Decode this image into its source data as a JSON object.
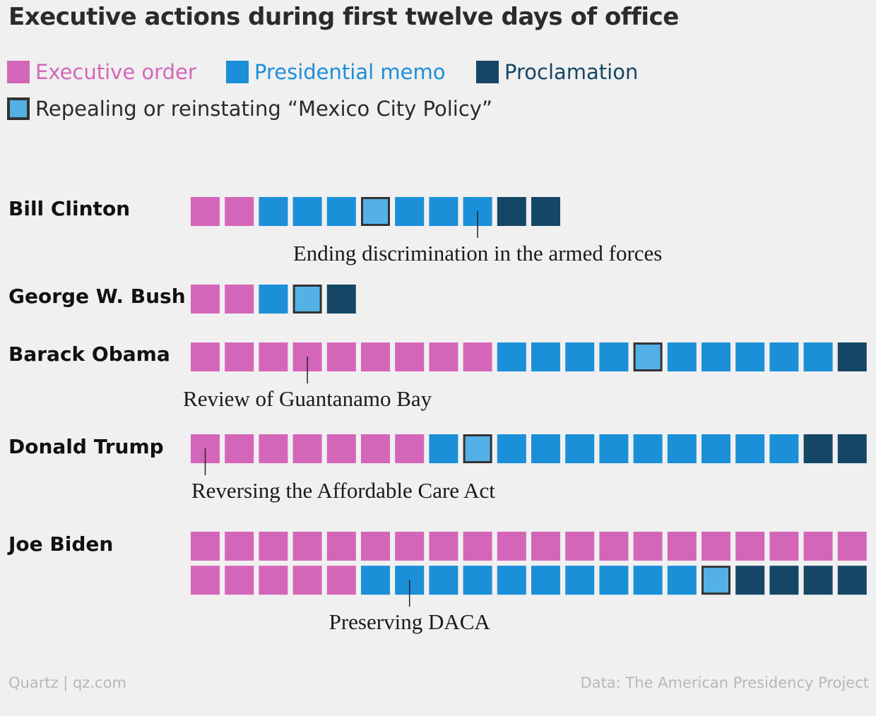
{
  "title": "Executive actions during first twelve days of office",
  "legend": [
    {
      "label": "Executive order",
      "color": "#d466b9",
      "text_color": "#d466b9",
      "outlined": false
    },
    {
      "label": "Presidential memo",
      "color": "#1b8fd8",
      "text_color": "#1b8fd8",
      "outlined": false
    },
    {
      "label": "Proclamation",
      "color": "#154666",
      "text_color": "#154666",
      "outlined": false
    },
    {
      "label": "Repealing or reinstating “Mexico City Policy”",
      "color": "#54b1e6",
      "text_color": "#2b2b2b",
      "outlined": true
    }
  ],
  "footer": {
    "source_left": "Quartz | qz.com",
    "source_right": "Data: The American Presidency Project"
  },
  "chart_data": {
    "type": "waffle",
    "title": "Executive actions during first twelve days of office",
    "unit": "one square = one executive action",
    "categories": {
      "E": "Executive order",
      "M": "Presidential memo",
      "P": "Proclamation",
      "X": "Repealing or reinstating “Mexico City Policy”"
    },
    "colors": {
      "E": "#d466b9",
      "M": "#1b8fd8",
      "P": "#154666",
      "X": "#54b1e6"
    },
    "outline_color": "#333333",
    "rows": [
      {
        "president": "Bill Clinton",
        "sequence": [
          "E",
          "E",
          "M",
          "M",
          "M",
          "X",
          "M",
          "M",
          "M",
          "P",
          "P"
        ],
        "counts": {
          "E": 2,
          "M": 6,
          "P": 2,
          "X": 1
        },
        "annotation": {
          "text": "Ending discrimination in the armed forces",
          "item_index": 8
        }
      },
      {
        "president": "George W. Bush",
        "sequence": [
          "E",
          "E",
          "M",
          "X",
          "P"
        ],
        "counts": {
          "E": 2,
          "M": 1,
          "P": 1,
          "X": 1
        },
        "annotation": null
      },
      {
        "president": "Barack Obama",
        "sequence": [
          "E",
          "E",
          "E",
          "E",
          "E",
          "E",
          "E",
          "E",
          "E",
          "M",
          "M",
          "M",
          "M",
          "X",
          "M",
          "M",
          "M",
          "M",
          "M",
          "P"
        ],
        "counts": {
          "E": 9,
          "M": 9,
          "P": 1,
          "X": 1
        },
        "annotation": {
          "text": "Review of Guantanamo Bay",
          "item_index": 3
        }
      },
      {
        "president": "Donald Trump",
        "sequence": [
          "E",
          "E",
          "E",
          "E",
          "E",
          "E",
          "E",
          "M",
          "X",
          "M",
          "M",
          "M",
          "M",
          "M",
          "M",
          "M",
          "M",
          "M",
          "P",
          "P"
        ],
        "counts": {
          "E": 7,
          "M": 10,
          "P": 2,
          "X": 1
        },
        "annotation": {
          "text": "Reversing the Affordable Care Act",
          "item_index": 0
        }
      },
      {
        "president": "Joe Biden",
        "sequence": [
          "E",
          "E",
          "E",
          "E",
          "E",
          "E",
          "E",
          "E",
          "E",
          "E",
          "E",
          "E",
          "E",
          "E",
          "E",
          "E",
          "E",
          "E",
          "E",
          "E",
          "E",
          "E",
          "E",
          "E",
          "E",
          "M",
          "M",
          "M",
          "M",
          "M",
          "M",
          "M",
          "M",
          "M",
          "M",
          "X",
          "P",
          "P",
          "P",
          "P"
        ],
        "counts": {
          "E": 25,
          "M": 10,
          "P": 4,
          "X": 1
        },
        "annotation": {
          "text": "Preserving DACA",
          "item_index": 26
        }
      }
    ]
  }
}
